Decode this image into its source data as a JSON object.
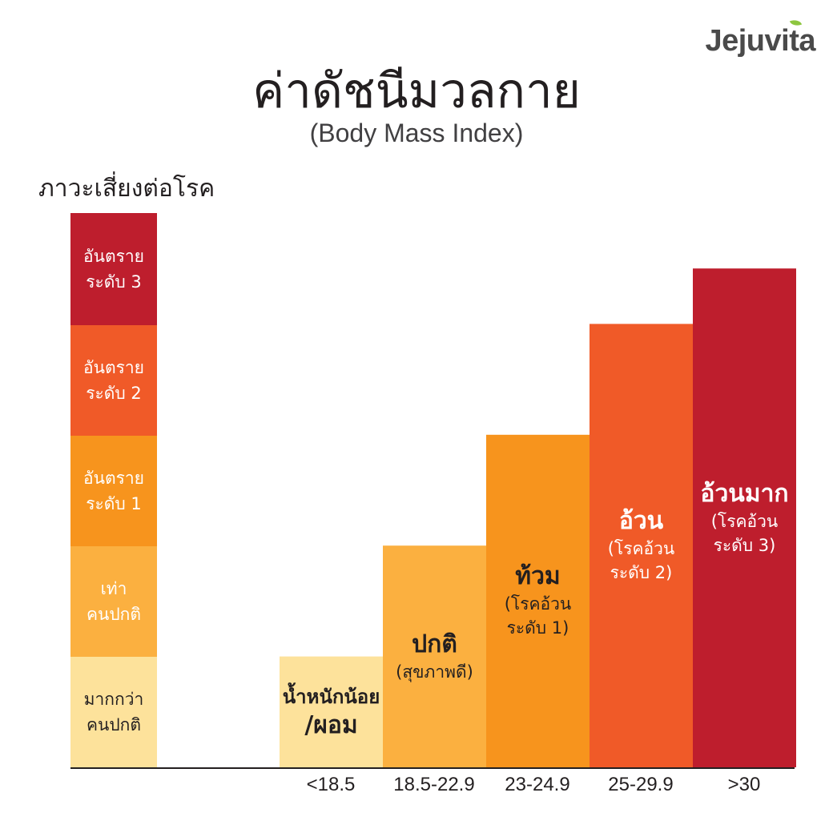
{
  "brand": {
    "name": "Jejuvita"
  },
  "header": {
    "title": "ค่าดัชนีมวลกาย",
    "subtitle": "(Body Mass Index)"
  },
  "risk_scale": {
    "title": "ภาวะเสี่ยงต่อโรค",
    "levels": [
      {
        "line1": "อันตราย",
        "line2": "ระดับ 3",
        "color": "#be1e2d",
        "text_color": "#ffffff"
      },
      {
        "line1": "อันตราย",
        "line2": "ระดับ 2",
        "color": "#f05a28",
        "text_color": "#ffffff"
      },
      {
        "line1": "อันตราย",
        "line2": "ระดับ 1",
        "color": "#f7941d",
        "text_color": "#ffffff"
      },
      {
        "line1": "เท่า",
        "line2": "คนปกติ",
        "color": "#fbb040",
        "text_color": "#ffffff"
      },
      {
        "line1": "มากกว่า",
        "line2": "คนปกติ",
        "color": "#fde29b",
        "text_color": "#231f20"
      }
    ]
  },
  "chart_data": {
    "type": "bar",
    "title": "ค่าดัชนีมวลกาย",
    "subtitle": "(Body Mass Index)",
    "ylabel": "ภาวะเสี่ยงต่อโรค",
    "xlabel": "",
    "categories": [
      "<18.5",
      "18.5-22.9",
      "23-24.9",
      "25-29.9",
      ">30"
    ],
    "values": [
      1,
      2,
      3,
      4,
      4.5
    ],
    "ylim": [
      0,
      5
    ],
    "grid": false,
    "colors": [
      "#fde29b",
      "#fbb040",
      "#f7941d",
      "#f05a28",
      "#be1e2d"
    ],
    "bar_labels": [
      {
        "main": "น้ำหนักน้อย",
        "main2": "/ผอม",
        "sub": "",
        "sub2": "",
        "text_color": "#231f20"
      },
      {
        "main": "ปกติ",
        "main2": "",
        "sub": "(สุขภาพดี)",
        "sub2": "",
        "text_color": "#231f20"
      },
      {
        "main": "ท้วม",
        "main2": "",
        "sub": "(โรคอ้วน",
        "sub2": "ระดับ 1)",
        "text_color": "#231f20"
      },
      {
        "main": "อ้วน",
        "main2": "",
        "sub": "(โรคอ้วน",
        "sub2": "ระดับ 2)",
        "text_color": "#ffffff"
      },
      {
        "main": "อ้วนมาก",
        "main2": "",
        "sub": "(โรคอ้วน",
        "sub2": "ระดับ 3)",
        "text_color": "#ffffff"
      }
    ]
  }
}
